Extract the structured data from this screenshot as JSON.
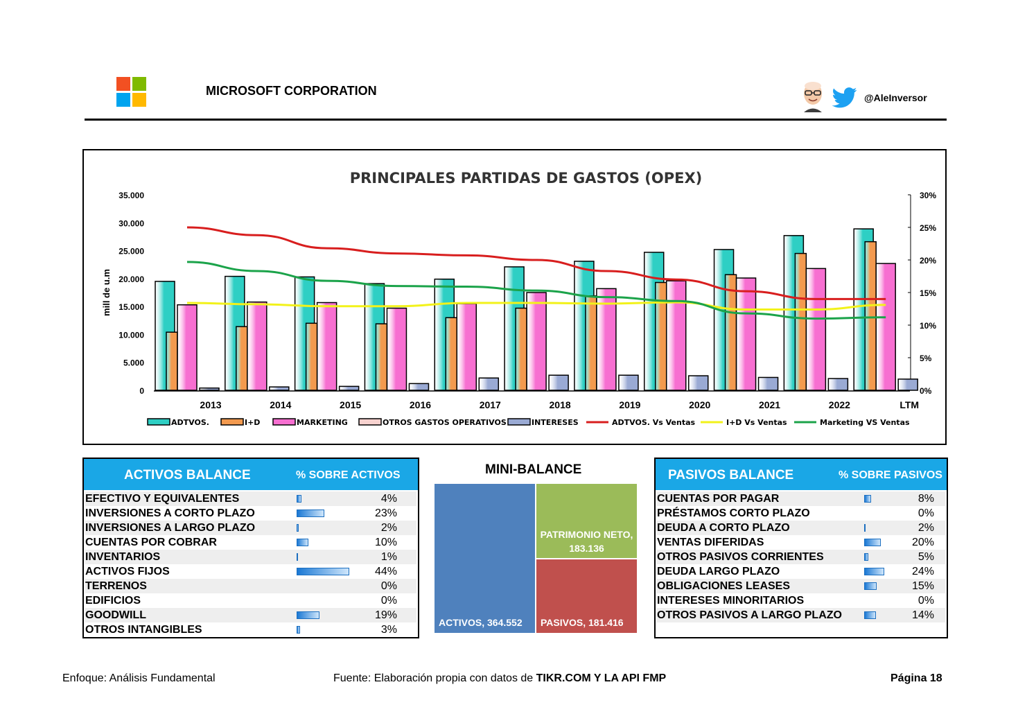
{
  "header": {
    "company": "MICROSOFT CORPORATION",
    "handle": "@AleInversor",
    "logo_colors": [
      "#f25022",
      "#7fba00",
      "#00a4ef",
      "#ffb900"
    ]
  },
  "chart_data": {
    "type": "bar",
    "title": "PRINCIPALES PARTIDAS DE GASTOS (OPEX)",
    "ylabel": "mill de u.m",
    "ylim": [
      0,
      35000
    ],
    "y_ticks": [
      "35.000",
      "30.000",
      "25.000",
      "20.000",
      "15.000",
      "10.000",
      "5.000",
      "0"
    ],
    "y2lim": [
      0,
      30
    ],
    "y2_ticks": [
      "30%",
      "25%",
      "20%",
      "15%",
      "10%",
      "5%",
      "0%"
    ],
    "categories": [
      "2013",
      "2014",
      "2015",
      "2016",
      "2017",
      "2018",
      "2019",
      "2020",
      "2021",
      "2022",
      "LTM"
    ],
    "series": [
      {
        "name": "ADTVOS.",
        "color": "#2ecfc4",
        "axis": "left",
        "kind": "bar",
        "values": [
          19500,
          20400,
          20300,
          19100,
          19900,
          22100,
          23100,
          24700,
          25200,
          27700,
          28900
        ]
      },
      {
        "name": "I+D",
        "color": "#f39a4f",
        "axis": "left",
        "kind": "bar",
        "values": [
          10400,
          11400,
          12000,
          11900,
          13000,
          14700,
          16900,
          19300,
          20700,
          24500,
          26600
        ]
      },
      {
        "name": "MARKETING",
        "color": "#f76fd1",
        "axis": "left",
        "kind": "bar",
        "values": [
          15300,
          15800,
          15700,
          14700,
          15500,
          17500,
          18200,
          19600,
          20100,
          21800,
          22700
        ]
      },
      {
        "name": "OTROS GASTOS OPERATIVOS",
        "color": "#f7d2cf",
        "axis": "left",
        "kind": "bar",
        "values": [
          0,
          0,
          0,
          0,
          0,
          0,
          0,
          0,
          0,
          0,
          0
        ]
      },
      {
        "name": "INTERESES",
        "color": "#9aaad4",
        "axis": "left",
        "kind": "bar",
        "values": [
          400,
          600,
          700,
          1200,
          2200,
          2700,
          2700,
          2600,
          2300,
          2100,
          2000
        ]
      },
      {
        "name": "ADTVOS. Vs Ventas",
        "color": "#d81e1e",
        "axis": "right",
        "kind": "line",
        "values": [
          25.0,
          23.8,
          21.8,
          21.0,
          20.7,
          20.0,
          18.3,
          17.0,
          15.2,
          14.0,
          14.0
        ]
      },
      {
        "name": "I+D Vs Ventas",
        "color": "#f2f21a",
        "axis": "right",
        "kind": "line",
        "values": [
          13.4,
          13.2,
          12.9,
          12.9,
          13.4,
          13.4,
          13.3,
          13.5,
          12.4,
          12.4,
          13.1
        ]
      },
      {
        "name": "Marketing VS Ventas",
        "color": "#1ba34a",
        "axis": "right",
        "kind": "line",
        "values": [
          19.7,
          18.3,
          16.8,
          16.0,
          15.9,
          15.3,
          14.3,
          13.7,
          11.8,
          11.0,
          11.2
        ]
      }
    ]
  },
  "activos": {
    "title": "ACTIVOS BALANCE",
    "col": "% SOBRE ACTIVOS",
    "rows": [
      {
        "label": "EFECTIVO Y EQUIVALENTES",
        "pct": "4%",
        "value": 4
      },
      {
        "label": "INVERSIONES A CORTO PLAZO",
        "pct": "23%",
        "value": 23
      },
      {
        "label": "INVERSIONES A LARGO PLAZO",
        "pct": "2%",
        "value": 2
      },
      {
        "label": "CUENTAS POR COBRAR",
        "pct": "10%",
        "value": 10
      },
      {
        "label": "INVENTARIOS",
        "pct": "1%",
        "value": 1
      },
      {
        "label": "ACTIVOS FIJOS",
        "pct": "44%",
        "value": 44
      },
      {
        "label": "TERRENOS",
        "pct": "0%",
        "value": 0
      },
      {
        "label": "EDIFICIOS",
        "pct": "0%",
        "value": 0
      },
      {
        "label": "GOODWILL",
        "pct": "19%",
        "value": 19
      },
      {
        "label": "OTROS INTANGIBLES",
        "pct": "3%",
        "value": 3
      }
    ]
  },
  "mini_balance": {
    "title": "MINI-BALANCE",
    "activos": {
      "label": "ACTIVOS, 364.552",
      "color": "#4f81bd"
    },
    "patrimonio": {
      "label1": "PATRIMONIO NETO,",
      "label2": "183.136",
      "color": "#9bbb59"
    },
    "pasivos": {
      "label": "PASIVOS, 181.416",
      "color": "#c0504d"
    }
  },
  "pasivos": {
    "title": "PASIVOS BALANCE",
    "col": "% SOBRE PASIVOS",
    "rows": [
      {
        "label": "CUENTAS POR PAGAR",
        "pct": "8%",
        "value": 8
      },
      {
        "label": "PRÉSTAMOS CORTO PLAZO",
        "pct": "0%",
        "value": 0
      },
      {
        "label": "DEUDA A CORTO PLAZO",
        "pct": "2%",
        "value": 2
      },
      {
        "label": "VENTAS DIFERIDAS",
        "pct": "20%",
        "value": 20
      },
      {
        "label": "OTROS PASIVOS CORRIENTES",
        "pct": "5%",
        "value": 5
      },
      {
        "label": "DEUDA LARGO PLAZO",
        "pct": "24%",
        "value": 24
      },
      {
        "label": "OBLIGACIONES LEASES",
        "pct": "15%",
        "value": 15
      },
      {
        "label": "INTERESES MINORITARIOS",
        "pct": "0%",
        "value": 0
      },
      {
        "label": "OTROS PASIVOS A LARGO PLAZO",
        "pct": "14%",
        "value": 14
      }
    ]
  },
  "footer": {
    "left": "Enfoque: Análisis Fundamental",
    "center_plain": "Fuente: Elaboración propia con datos de ",
    "center_bold": "TIKR.COM Y LA API FMP",
    "right": "Página 18"
  }
}
